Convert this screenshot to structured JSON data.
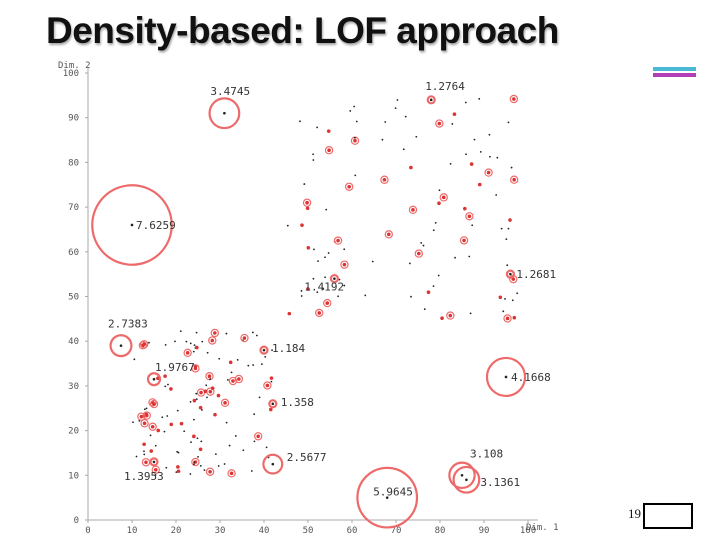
{
  "slide": {
    "title": "Density-based: LOF approach",
    "page_number": "19",
    "accent_colors": [
      "#4bb9d6",
      "#b23fb6"
    ]
  },
  "chart_data": {
    "type": "scatter",
    "title": "",
    "xlabel": "Dim. 1",
    "ylabel": "Dim. 2",
    "xlim": [
      0,
      100
    ],
    "ylim": [
      0,
      100
    ],
    "xticks": [
      0,
      10,
      20,
      30,
      40,
      50,
      60,
      70,
      80,
      90,
      100
    ],
    "yticks": [
      0,
      10,
      20,
      30,
      40,
      50,
      60,
      70,
      80,
      90,
      100
    ],
    "grid": false,
    "colors": {
      "point": "#222222",
      "circle": "#ee6a6a",
      "red_point": "#dd3333",
      "axis": "#aaaaaa"
    },
    "annotated_points": [
      {
        "x": 10,
        "y": 66,
        "lof": "7.6259"
      },
      {
        "x": 31,
        "y": 91,
        "lof": "3.4745"
      },
      {
        "x": 68,
        "y": 5,
        "lof": "5.9645"
      },
      {
        "x": 95,
        "y": 32,
        "lof": "4.1668"
      },
      {
        "x": 42,
        "y": 12.5,
        "lof": "2.5677"
      },
      {
        "x": 7.5,
        "y": 39,
        "lof": "2.7383"
      },
      {
        "x": 85,
        "y": 10,
        "lof": "3.108"
      },
      {
        "x": 86,
        "y": 9,
        "lof": "3.1361"
      },
      {
        "x": 15,
        "y": 31.5,
        "lof": "1.9767"
      },
      {
        "x": 78,
        "y": 94,
        "lof": "1.2764"
      },
      {
        "x": 96,
        "y": 55,
        "lof": "1.2681"
      },
      {
        "x": 40,
        "y": 38,
        "lof": "1.184"
      },
      {
        "x": 42,
        "y": 26,
        "lof": "1.358"
      },
      {
        "x": 56,
        "y": 54,
        "lof": "1.4192"
      },
      {
        "x": 15,
        "y": 13,
        "lof": "1.3953"
      }
    ],
    "clusters": [
      {
        "name": "lower-left dense cluster",
        "x_range": [
          10,
          42
        ],
        "y_range": [
          10,
          43
        ],
        "approx_points": 130
      },
      {
        "name": "upper-right sparse cluster",
        "x_range": [
          45,
          98
        ],
        "y_range": [
          45,
          95
        ],
        "approx_points": 110
      }
    ]
  }
}
